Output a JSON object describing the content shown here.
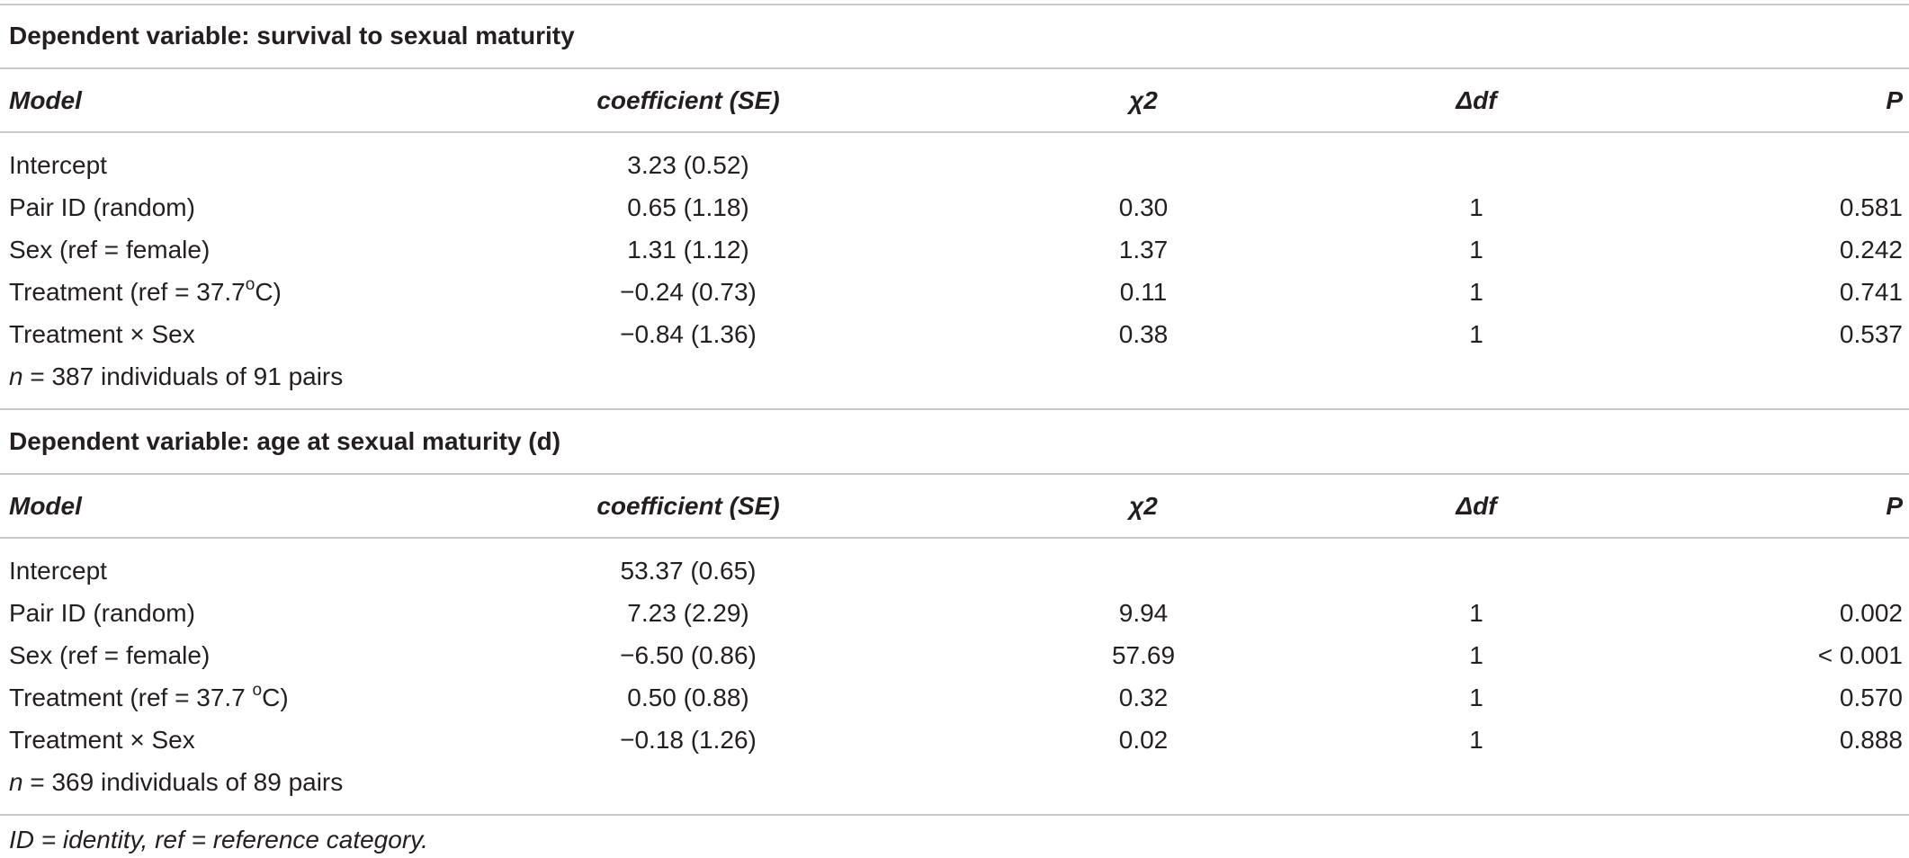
{
  "table": {
    "columns": {
      "model": "Model",
      "coefficient": "coefficient (SE)",
      "chi2": "χ2",
      "df": "Δdf",
      "p": "P"
    },
    "sections": [
      {
        "heading": "Dependent variable: survival to sexual maturity",
        "rows": [
          {
            "model": "Intercept",
            "coef": "3.23 (0.52)",
            "chi2": "",
            "df": "",
            "p": ""
          },
          {
            "model": "Pair ID (random)",
            "coef": "0.65 (1.18)",
            "chi2": "0.30",
            "df": "1",
            "p": "0.581"
          },
          {
            "model": "Sex (ref = female)",
            "coef": "1.31 (1.12)",
            "chi2": "1.37",
            "df": "1",
            "p": "0.242"
          },
          {
            "model_pre": "Treatment (ref = 37.7",
            "model_sup": "o",
            "model_post": "C)",
            "coef": "−0.24 (0.73)",
            "chi2": "0.11",
            "df": "1",
            "p": "0.741"
          },
          {
            "model": "Treatment × Sex",
            "coef": "−0.84 (1.36)",
            "chi2": "0.38",
            "df": "1",
            "p": "0.537"
          }
        ],
        "n_symbol": "n",
        "n_text": " = 387 individuals of 91 pairs"
      },
      {
        "heading": "Dependent variable: age at sexual maturity (d)",
        "rows": [
          {
            "model": "Intercept",
            "coef": "53.37 (0.65)",
            "chi2": "",
            "df": "",
            "p": ""
          },
          {
            "model": "Pair ID (random)",
            "coef": "7.23 (2.29)",
            "chi2": "9.94",
            "df": "1",
            "p": "0.002"
          },
          {
            "model": "Sex (ref = female)",
            "coef": "−6.50 (0.86)",
            "chi2": "57.69",
            "df": "1",
            "p": "< 0.001"
          },
          {
            "model_pre": "Treatment (ref = 37.7 ",
            "model_sup": "o",
            "model_post": "C)",
            "coef": "0.50 (0.88)",
            "chi2": "0.32",
            "df": "1",
            "p": "0.570"
          },
          {
            "model": "Treatment × Sex",
            "coef": "−0.18 (1.26)",
            "chi2": "0.02",
            "df": "1",
            "p": "0.888"
          }
        ],
        "n_symbol": "n",
        "n_text": " = 369 individuals of 89 pairs"
      }
    ],
    "footnote": "ID = identity, ref = reference category."
  }
}
